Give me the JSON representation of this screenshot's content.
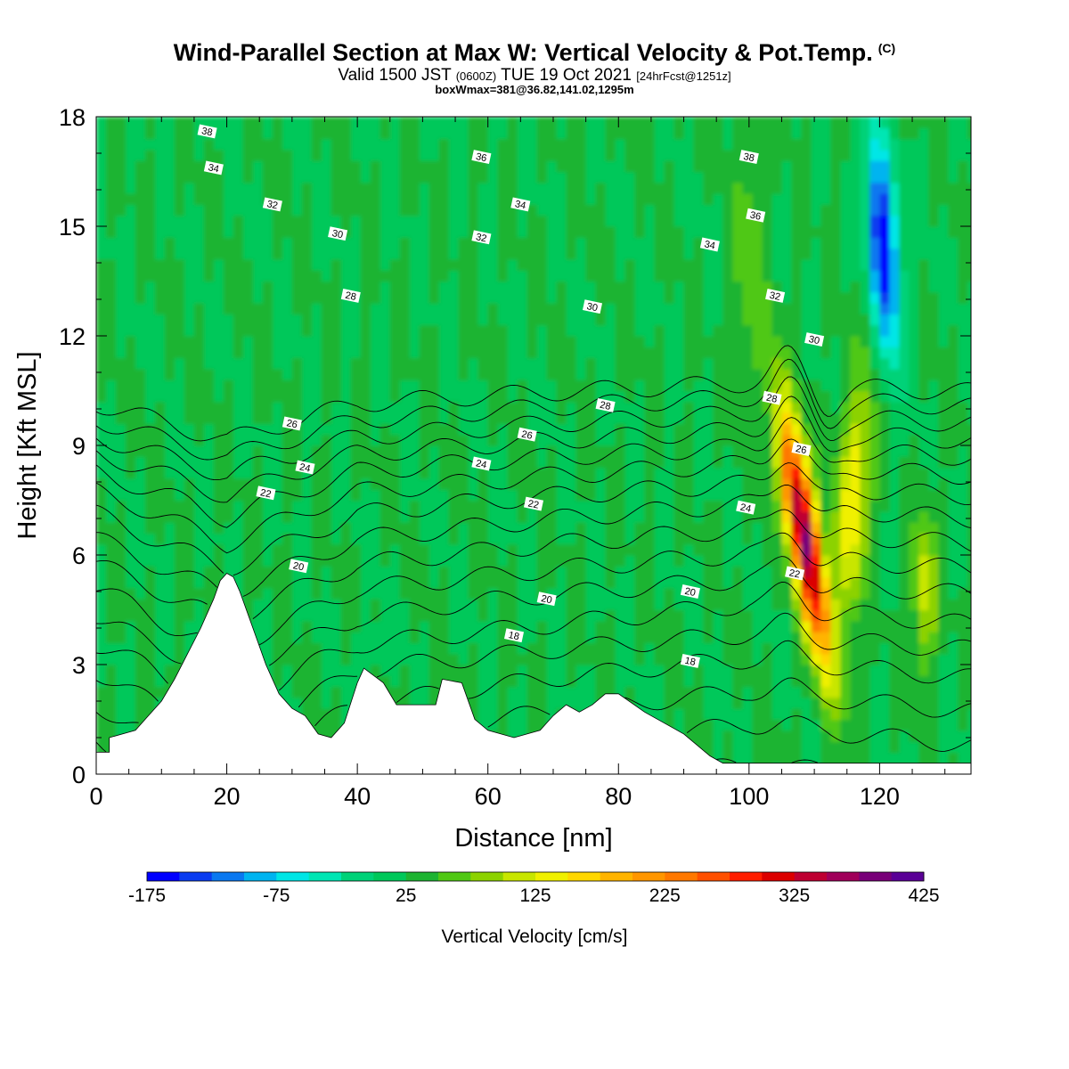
{
  "header": {
    "title": "Wind-Parallel Section at Max W: Vertical Velocity & Pot.Temp.",
    "copyright": "(C)",
    "valid_prefix": "Valid 1500 JST",
    "valid_utc": "(0600Z)",
    "valid_date": "TUE 19 Oct 2021",
    "forecast": "[24hrFcst@1251z]",
    "boxmax": "boxWmax=381@36.82,141.02,1295m"
  },
  "chart_data": {
    "type": "heatmap",
    "xlabel": "Distance [nm]",
    "ylabel": "Height [Kft MSL]",
    "xlim": [
      0,
      134
    ],
    "ylim": [
      0,
      18
    ],
    "x_ticks": [
      "0",
      "20",
      "40",
      "60",
      "80",
      "100",
      "120"
    ],
    "y_ticks": [
      "0",
      "3",
      "6",
      "9",
      "12",
      "15",
      "18"
    ],
    "background_velocity": 25,
    "updraft_cores": [
      {
        "x": 108.5,
        "z": 6.5,
        "peak": 381
      },
      {
        "x": 116,
        "z": 7.5,
        "peak": 150
      },
      {
        "x": 127,
        "z": 5.0,
        "peak": 120
      }
    ],
    "downdraft_cores": [
      {
        "x": 120.5,
        "z": 14.5,
        "peak": -175
      }
    ],
    "terrain": {
      "x": [
        0,
        2,
        2,
        6,
        8,
        10,
        12,
        14,
        16,
        18,
        19,
        20,
        21,
        22,
        24,
        26,
        28,
        30,
        32,
        34,
        36,
        38,
        40,
        41,
        44,
        46,
        48,
        52,
        53,
        56,
        58,
        60,
        64,
        68,
        70,
        72,
        74,
        76,
        78,
        80,
        84,
        88,
        90,
        92,
        94,
        96,
        100,
        104,
        108,
        112,
        116,
        120,
        124,
        128,
        134
      ],
      "z": [
        0.6,
        0.6,
        1.0,
        1.2,
        1.6,
        2.0,
        2.6,
        3.3,
        4.0,
        4.8,
        5.3,
        5.5,
        5.4,
        5.0,
        4.0,
        3.0,
        2.2,
        1.8,
        1.6,
        1.1,
        1.0,
        1.4,
        2.5,
        2.9,
        2.5,
        1.9,
        1.9,
        1.9,
        2.6,
        2.5,
        1.5,
        1.2,
        1.0,
        1.2,
        1.6,
        1.9,
        1.7,
        1.9,
        2.2,
        2.2,
        1.7,
        1.3,
        1.1,
        0.8,
        0.5,
        0.3,
        0.3,
        0.3,
        0.3,
        0.3,
        0.3,
        0.3,
        0.3,
        0.3,
        0.3
      ]
    },
    "contours": {
      "base_levels": [
        17.2,
        17.5,
        17.7,
        18.0,
        18.3,
        18.6,
        18.9,
        19.3,
        19.7,
        20.0,
        20.4,
        20.8,
        21.2,
        21.6,
        22.0,
        22.5,
        23.0,
        23.6,
        24.2,
        24.8,
        25.5,
        26.0,
        26.5,
        27.1,
        27.8,
        28.5,
        29.3,
        30.1,
        31.0,
        32.0,
        33.2,
        34.6,
        36.2,
        37.8
      ],
      "surface": [
        {
          "x": 0,
          "theta": 17.2
        },
        {
          "x": 20,
          "theta": 18.3
        },
        {
          "x": 40,
          "theta": 17.2
        },
        {
          "x": 70,
          "theta": 16.8
        },
        {
          "x": 100,
          "theta": 16.5
        },
        {
          "x": 134,
          "theta": 16.8
        }
      ]
    },
    "contour_labels": [
      {
        "text": "38",
        "x": 17,
        "z": 17.6
      },
      {
        "text": "34",
        "x": 18,
        "z": 16.6
      },
      {
        "text": "32",
        "x": 27,
        "z": 15.6
      },
      {
        "text": "30",
        "x": 37,
        "z": 14.8
      },
      {
        "text": "28",
        "x": 39,
        "z": 13.1
      },
      {
        "text": "26",
        "x": 30,
        "z": 9.6
      },
      {
        "text": "24",
        "x": 32,
        "z": 8.4
      },
      {
        "text": "22",
        "x": 26,
        "z": 7.7
      },
      {
        "text": "20",
        "x": 31,
        "z": 5.7
      },
      {
        "text": "36",
        "x": 59,
        "z": 16.9
      },
      {
        "text": "34",
        "x": 65,
        "z": 15.6
      },
      {
        "text": "32",
        "x": 59,
        "z": 14.7
      },
      {
        "text": "30",
        "x": 76,
        "z": 12.8
      },
      {
        "text": "28",
        "x": 78,
        "z": 10.1
      },
      {
        "text": "26",
        "x": 66,
        "z": 9.3
      },
      {
        "text": "24",
        "x": 59,
        "z": 8.5
      },
      {
        "text": "22",
        "x": 67,
        "z": 7.4
      },
      {
        "text": "20",
        "x": 69,
        "z": 4.8
      },
      {
        "text": "18",
        "x": 64,
        "z": 3.8
      },
      {
        "text": "38",
        "x": 100,
        "z": 16.9
      },
      {
        "text": "36",
        "x": 101,
        "z": 15.3
      },
      {
        "text": "34",
        "x": 94,
        "z": 14.5
      },
      {
        "text": "32",
        "x": 104,
        "z": 13.1
      },
      {
        "text": "30",
        "x": 110,
        "z": 11.9
      },
      {
        "text": "28",
        "x": 103.5,
        "z": 10.3
      },
      {
        "text": "26",
        "x": 108,
        "z": 8.9
      },
      {
        "text": "24",
        "x": 99.5,
        "z": 7.3
      },
      {
        "text": "22",
        "x": 107,
        "z": 5.5
      },
      {
        "text": "20",
        "x": 91,
        "z": 5.0
      },
      {
        "text": "18",
        "x": 91,
        "z": 3.1
      }
    ],
    "colorbar": {
      "label": "Vertical Velocity [cm/s]",
      "min": -175,
      "max": 425,
      "step": 25,
      "tick_labels": [
        "-175",
        "-75",
        "25",
        "125",
        "225",
        "325",
        "425"
      ],
      "colors": [
        "#0000ff",
        "#0a3cf0",
        "#0a78f0",
        "#00b4f0",
        "#00e6e6",
        "#00e6b4",
        "#00d278",
        "#00c85a",
        "#1eb432",
        "#50c814",
        "#8cd200",
        "#c8e600",
        "#f0f000",
        "#ffd700",
        "#ffb400",
        "#ff9600",
        "#ff7800",
        "#ff5000",
        "#ff1e00",
        "#dc0000",
        "#be0032",
        "#a0005a",
        "#780078",
        "#5a0096"
      ]
    }
  }
}
